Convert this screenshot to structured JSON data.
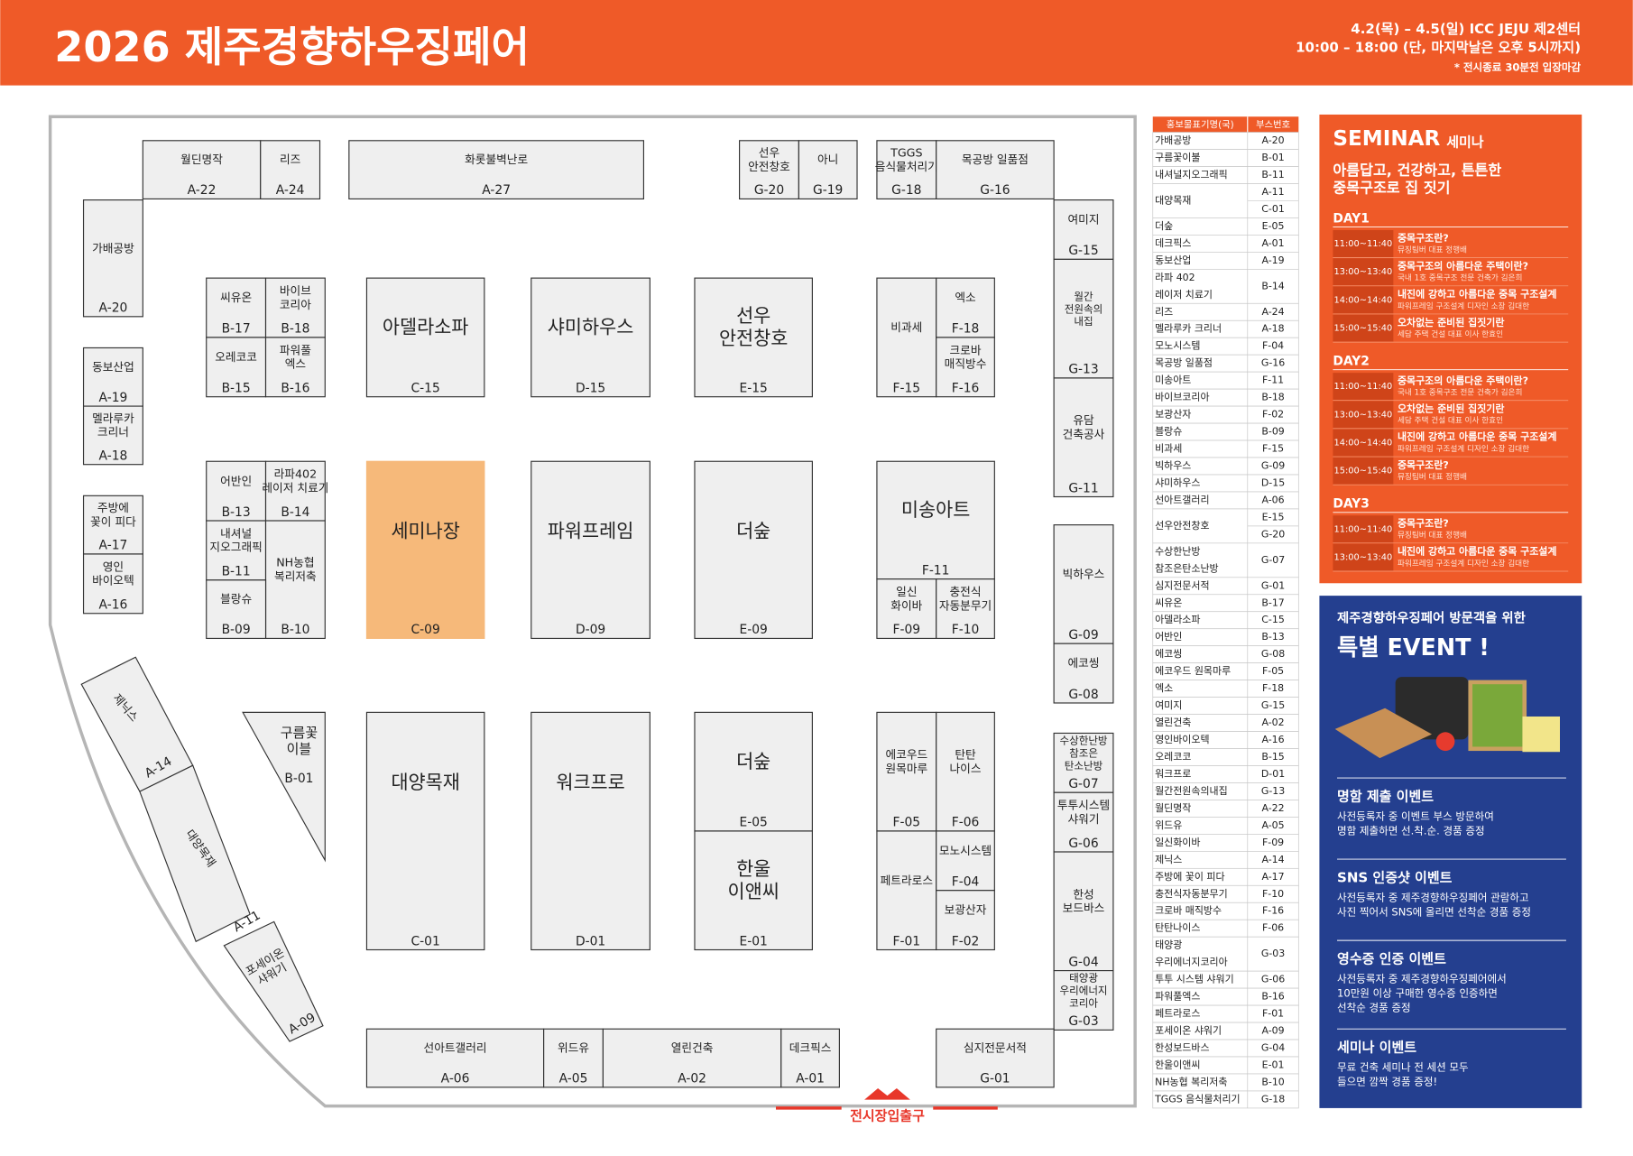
{
  "header": {
    "title": "2026 제주경향하우징페어",
    "info": [
      "4.2(목) – 4.5(일) ICC JEJU 제2센터",
      "10:00 – 18:00 (단, 마지막날은 오후 5시까지)",
      "* 전시종료 30분전 입장마감"
    ]
  },
  "floor": {
    "entrance": "전시장입출구",
    "booths": [
      {
        "label": [
          "월딘명작"
        ],
        "code": "A-22"
      },
      {
        "label": [
          "리즈"
        ],
        "code": "A-24"
      },
      {
        "label": [
          "화롯불벽난로"
        ],
        "code": "A-27"
      },
      {
        "label": [
          "선우",
          "안전창호"
        ],
        "code": "G-20"
      },
      {
        "label": [
          "아니"
        ],
        "code": "G-19"
      },
      {
        "label": [
          "TGGS",
          "음식물처리기"
        ],
        "code": "G-18"
      },
      {
        "label": [
          "목공방 일품점"
        ],
        "code": "G-16"
      },
      {
        "label": [
          "가배공방"
        ],
        "code": "A-20"
      },
      {
        "label": [
          "동보산업"
        ],
        "code": "A-19"
      },
      {
        "label": [
          "멜라루카",
          "크리너"
        ],
        "code": "A-18"
      },
      {
        "label": [
          "주방에",
          "꽃이 피다"
        ],
        "code": "A-17"
      },
      {
        "label": [
          "영인",
          "바이오텍"
        ],
        "code": "A-16"
      },
      {
        "label": [
          "씨유온"
        ],
        "code": "B-17"
      },
      {
        "label": [
          "바이브",
          "코리아"
        ],
        "code": "B-18"
      },
      {
        "label": [
          "오레코코"
        ],
        "code": "B-15"
      },
      {
        "label": [
          "파워풀",
          "엑스"
        ],
        "code": "B-16"
      },
      {
        "label": [
          "아델라소파"
        ],
        "code": "C-15"
      },
      {
        "label": [
          "샤미하우스"
        ],
        "code": "D-15"
      },
      {
        "label": [
          "선우",
          "안전창호"
        ],
        "code": "E-15"
      },
      {
        "label": [
          "비과세"
        ],
        "code": "F-15"
      },
      {
        "label": [
          "엑소"
        ],
        "code": "F-18"
      },
      {
        "label": [
          "크로바",
          "매직방수"
        ],
        "code": "F-16"
      },
      {
        "label": [
          "여미지"
        ],
        "code": "G-15"
      },
      {
        "label": [
          "월간",
          "전원속의",
          "내집"
        ],
        "code": "G-13"
      },
      {
        "label": [
          "유담",
          "건축공사"
        ],
        "code": "G-11"
      },
      {
        "label": [
          "빅하우스"
        ],
        "code": "G-09"
      },
      {
        "label": [
          "에코씽"
        ],
        "code": "G-08"
      },
      {
        "label": [
          "수상한난방",
          "참조은",
          "탄소난방"
        ],
        "code": "G-07"
      },
      {
        "label": [
          "투투시스템",
          "샤워기"
        ],
        "code": "G-06"
      },
      {
        "label": [
          "한성",
          "보드바스"
        ],
        "code": "G-04"
      },
      {
        "label": [
          "태양광",
          "우리에너지",
          "코리아"
        ],
        "code": "G-03"
      },
      {
        "label": [
          "어반인"
        ],
        "code": "B-13"
      },
      {
        "label": [
          "라파402",
          "레이저 치료기"
        ],
        "code": "B-14"
      },
      {
        "label": [
          "내셔널",
          "지오그래픽"
        ],
        "code": "B-11"
      },
      {
        "label": [
          "NH농협",
          "복리저축"
        ],
        "code": "B-10"
      },
      {
        "label": [
          "블랑슈"
        ],
        "code": "B-09"
      },
      {
        "label": [
          "세미나장"
        ],
        "code": "C-09"
      },
      {
        "label": [
          "파워프레임"
        ],
        "code": "D-09"
      },
      {
        "label": [
          "더숲"
        ],
        "code": "E-09"
      },
      {
        "label": [
          "미송아트"
        ],
        "code": "F-11"
      },
      {
        "label": [
          "일신",
          "화이바"
        ],
        "code": "F-09"
      },
      {
        "label": [
          "충전식",
          "자동분무기"
        ],
        "code": "F-10"
      },
      {
        "label": [
          "대양목재"
        ],
        "code": "C-01"
      },
      {
        "label": [
          "워크프로"
        ],
        "code": "D-01"
      },
      {
        "label": [
          "더숲"
        ],
        "code": "E-05"
      },
      {
        "label": [
          "한울",
          "이앤씨"
        ],
        "code": "E-01"
      },
      {
        "label": [
          "에코우드",
          "원목마루"
        ],
        "code": "F-05"
      },
      {
        "label": [
          "탄탄",
          "나이스"
        ],
        "code": "F-06"
      },
      {
        "label": [
          "페트라로스"
        ],
        "code": "F-01"
      },
      {
        "label": [
          "모노시스템"
        ],
        "code": "F-04"
      },
      {
        "label": [
          "보광산자"
        ],
        "code": "F-02"
      },
      {
        "label": [
          "선아트갤러리"
        ],
        "code": "A-06"
      },
      {
        "label": [
          "위드유"
        ],
        "code": "A-05"
      },
      {
        "label": [
          "열린건축"
        ],
        "code": "A-02"
      },
      {
        "label": [
          "데크픽스"
        ],
        "code": "A-01"
      },
      {
        "label": [
          "심지전문서적"
        ],
        "code": "G-01"
      },
      {
        "label": [
          "구름꽃",
          "이블"
        ],
        "code": "B-01"
      },
      {
        "label": [
          "제닉스"
        ],
        "code": "A-14"
      },
      {
        "label": [
          "대양목재"
        ],
        "code": "A-11"
      },
      {
        "label": [
          "포세이온",
          "샤워기"
        ],
        "code": "A-09"
      }
    ]
  },
  "directory": {
    "columns": [
      "홍보물표기명(국)",
      "부스번호"
    ],
    "rows": [
      {
        "name": [
          "가배공방"
        ],
        "codes": [
          "A-20"
        ]
      },
      {
        "name": [
          "구름꽃이불"
        ],
        "codes": [
          "B-01"
        ]
      },
      {
        "name": [
          "내셔널지오그래픽"
        ],
        "codes": [
          "B-11"
        ]
      },
      {
        "name": [
          "대양목재"
        ],
        "codes": [
          "A-11",
          "C-01"
        ]
      },
      {
        "name": [
          "더숲"
        ],
        "codes": [
          "E-05"
        ]
      },
      {
        "name": [
          "데크픽스"
        ],
        "codes": [
          "A-01"
        ]
      },
      {
        "name": [
          "동보산업"
        ],
        "codes": [
          "A-19"
        ]
      },
      {
        "name": [
          "라파 402",
          "레이저 치료기"
        ],
        "codes": [
          "B-14"
        ]
      },
      {
        "name": [
          "리즈"
        ],
        "codes": [
          "A-24"
        ]
      },
      {
        "name": [
          "멜라루카 크리너"
        ],
        "codes": [
          "A-18"
        ]
      },
      {
        "name": [
          "모노시스템"
        ],
        "codes": [
          "F-04"
        ]
      },
      {
        "name": [
          "목공방 일품점"
        ],
        "codes": [
          "G-16"
        ]
      },
      {
        "name": [
          "미송아트"
        ],
        "codes": [
          "F-11"
        ]
      },
      {
        "name": [
          "바이브코리아"
        ],
        "codes": [
          "B-18"
        ]
      },
      {
        "name": [
          "보광산자"
        ],
        "codes": [
          "F-02"
        ]
      },
      {
        "name": [
          "블랑슈"
        ],
        "codes": [
          "B-09"
        ]
      },
      {
        "name": [
          "비과세"
        ],
        "codes": [
          "F-15"
        ]
      },
      {
        "name": [
          "빅하우스"
        ],
        "codes": [
          "G-09"
        ]
      },
      {
        "name": [
          "샤미하우스"
        ],
        "codes": [
          "D-15"
        ]
      },
      {
        "name": [
          "선아트갤러리"
        ],
        "codes": [
          "A-06"
        ]
      },
      {
        "name": [
          "선우안전창호"
        ],
        "codes": [
          "E-15",
          "G-20"
        ]
      },
      {
        "name": [
          "수상한난방",
          "참조은탄소난방"
        ],
        "codes": [
          "G-07"
        ]
      },
      {
        "name": [
          "심지전문서적"
        ],
        "codes": [
          "G-01"
        ]
      },
      {
        "name": [
          "씨유온"
        ],
        "codes": [
          "B-17"
        ]
      },
      {
        "name": [
          "아델라소파"
        ],
        "codes": [
          "C-15"
        ]
      },
      {
        "name": [
          "어반인"
        ],
        "codes": [
          "B-13"
        ]
      },
      {
        "name": [
          "에코씽"
        ],
        "codes": [
          "G-08"
        ]
      },
      {
        "name": [
          "에코우드 원목마루"
        ],
        "codes": [
          "F-05"
        ]
      },
      {
        "name": [
          "엑소"
        ],
        "codes": [
          "F-18"
        ]
      },
      {
        "name": [
          "여미지"
        ],
        "codes": [
          "G-15"
        ]
      },
      {
        "name": [
          "열린건축"
        ],
        "codes": [
          "A-02"
        ]
      },
      {
        "name": [
          "영인바이오텍"
        ],
        "codes": [
          "A-16"
        ]
      },
      {
        "name": [
          "오레코코"
        ],
        "codes": [
          "B-15"
        ]
      },
      {
        "name": [
          "워크프로"
        ],
        "codes": [
          "D-01"
        ]
      },
      {
        "name": [
          "월간전원속의내집"
        ],
        "codes": [
          "G-13"
        ]
      },
      {
        "name": [
          "월딘명작"
        ],
        "codes": [
          "A-22"
        ]
      },
      {
        "name": [
          "위드유"
        ],
        "codes": [
          "A-05"
        ]
      },
      {
        "name": [
          "일신화이바"
        ],
        "codes": [
          "F-09"
        ]
      },
      {
        "name": [
          "제닉스"
        ],
        "codes": [
          "A-14"
        ]
      },
      {
        "name": [
          "주방에 꽃이 피다"
        ],
        "codes": [
          "A-17"
        ]
      },
      {
        "name": [
          "충전식자동분무기"
        ],
        "codes": [
          "F-10"
        ]
      },
      {
        "name": [
          "크로바 매직방수"
        ],
        "codes": [
          "F-16"
        ]
      },
      {
        "name": [
          "탄탄나이스"
        ],
        "codes": [
          "F-06"
        ]
      },
      {
        "name": [
          "태양광",
          "우리에너지코리아"
        ],
        "codes": [
          "G-03"
        ]
      },
      {
        "name": [
          "투투 시스템 샤워기"
        ],
        "codes": [
          "G-06"
        ]
      },
      {
        "name": [
          "파워풀엑스"
        ],
        "codes": [
          "B-16"
        ]
      },
      {
        "name": [
          "페트라로스"
        ],
        "codes": [
          "F-01"
        ]
      },
      {
        "name": [
          "포세이온 샤워기"
        ],
        "codes": [
          "A-09"
        ]
      },
      {
        "name": [
          "한성보드바스"
        ],
        "codes": [
          "G-04"
        ]
      },
      {
        "name": [
          "한울이앤씨"
        ],
        "codes": [
          "E-01"
        ]
      },
      {
        "name": [
          "NH농협 복리저축"
        ],
        "codes": [
          "B-10"
        ]
      },
      {
        "name": [
          "TGGS 음식물처리기"
        ],
        "codes": [
          "G-18"
        ]
      }
    ]
  },
  "seminar": {
    "title": "SEMINAR",
    "subtitle": "세미나",
    "headline": [
      "아름답고, 건강하고, 튼튼한",
      "중목구조로 집 짓기"
    ],
    "days": [
      {
        "name": "DAY1",
        "sessions": [
          {
            "time": "11:00~11:40",
            "title": "중목구조란?",
            "speaker": "뮤징팀버 대표 정행배"
          },
          {
            "time": "13:00~13:40",
            "title": "중목구조의 아름다운 주택이란?",
            "speaker": "국내 1호 중목구조 전문 건축가 김은희"
          },
          {
            "time": "14:00~14:40",
            "title": "내진에 강하고 아름다운 중목 구조설계",
            "speaker": "파워프레임 구조설계 디자인 소장 김대한"
          },
          {
            "time": "15:00~15:40",
            "title": "오차없는 준비된 집짓기란",
            "speaker": "세담 주택 건설 대표 이사 한효인"
          }
        ]
      },
      {
        "name": "DAY2",
        "sessions": [
          {
            "time": "11:00~11:40",
            "title": "중목구조의 아름다운 주택이란?",
            "speaker": "국내 1호 중목구조 전문 건축가 김은희"
          },
          {
            "time": "13:00~13:40",
            "title": "오차없는 준비된 집짓기란",
            "speaker": "세담 주택 건설 대표 이사 한효인"
          },
          {
            "time": "14:00~14:40",
            "title": "내진에 강하고 아름다운 중목 구조설계",
            "speaker": "파워프레임 구조설계 디자인 소장 김대한"
          },
          {
            "time": "15:00~15:40",
            "title": "중목구조란?",
            "speaker": "뮤징팀버 대표 정행배"
          }
        ]
      },
      {
        "name": "DAY3",
        "sessions": [
          {
            "time": "11:00~11:40",
            "title": "중목구조란?",
            "speaker": "뮤징팀버 대표 정행배"
          },
          {
            "time": "13:00~13:40",
            "title": "내진에 강하고 아름다운 중목 구조설계",
            "speaker": "파워프레임 구조설계 디자인 소장 김대한"
          }
        ]
      }
    ]
  },
  "event": {
    "intro": "제주경향하우징페어 방문객을 위한",
    "title": "특별 EVENT !",
    "items": [
      {
        "title": "명함 제출 이벤트",
        "lines": [
          "사전등록자 중 이벤트 부스 방문하여",
          "명함 제출하면 선.착.순. 경품 증정"
        ]
      },
      {
        "title": "SNS 인증샷 이벤트",
        "lines": [
          "사전등록자 중 제주경향하우징페어 관람하고",
          "사진 찍어서 SNS에 올리면 선착순 경품 증정"
        ]
      },
      {
        "title": "영수증 인증 이벤트",
        "lines": [
          "사전등록자 중 제주경향하우징페어에서",
          "10만원 이상 구매한 영수증 인증하면",
          "선착순 경품 증정"
        ]
      },
      {
        "title": "세미나 이벤트",
        "lines": [
          "무료 건축 세미나 전 세션 모두",
          "들으면 깜짝 경품 증정!"
        ]
      }
    ]
  }
}
